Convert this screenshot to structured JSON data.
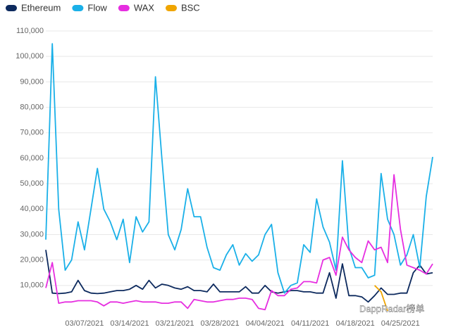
{
  "chart_data": {
    "type": "line",
    "watermark": "DappRadar榜单",
    "categories": [
      null,
      null,
      null,
      null,
      null,
      null,
      "03/07/2021",
      null,
      null,
      null,
      null,
      null,
      null,
      "03/14/2021",
      null,
      null,
      null,
      null,
      null,
      null,
      "03/21/2021",
      null,
      null,
      null,
      null,
      null,
      null,
      "03/28/2021",
      null,
      null,
      null,
      null,
      null,
      null,
      "04/04/2021",
      null,
      null,
      null,
      null,
      null,
      null,
      "04/11/2021",
      null,
      null,
      null,
      null,
      null,
      null,
      "04/18/2021",
      null,
      null,
      null,
      null,
      null,
      null,
      "04/25/2021",
      null,
      null,
      null,
      null,
      null
    ],
    "series": [
      {
        "name": "Ethereum",
        "color": "#0d2a5e",
        "values": [
          24000,
          7000,
          6800,
          7000,
          7500,
          12000,
          8000,
          7000,
          6800,
          7000,
          7500,
          8000,
          8000,
          8500,
          10000,
          8500,
          12000,
          9000,
          10500,
          10000,
          9000,
          8500,
          9500,
          8000,
          8000,
          7500,
          10500,
          7500,
          7500,
          7500,
          7500,
          9500,
          7000,
          7000,
          10000,
          7500,
          7000,
          7500,
          8000,
          8000,
          7500,
          7500,
          7000,
          7000,
          15000,
          5000,
          18500,
          6000,
          6000,
          5500,
          3500,
          6000,
          9000,
          6500,
          6500,
          7000,
          7000,
          15000,
          18000,
          14500,
          15000
        ]
      },
      {
        "name": "Flow",
        "color": "#1ab0e8",
        "values": [
          28000,
          105000,
          40000,
          16000,
          20000,
          35000,
          24000,
          40000,
          56000,
          40000,
          35000,
          28000,
          36000,
          19000,
          37000,
          31000,
          35000,
          92000,
          60000,
          30000,
          24000,
          32000,
          48000,
          37000,
          37000,
          25000,
          17000,
          16000,
          22000,
          26000,
          18000,
          22500,
          19500,
          22000,
          30000,
          34000,
          15000,
          7000,
          10000,
          11000,
          26000,
          23000,
          44000,
          33000,
          27000,
          16000,
          59000,
          25000,
          17000,
          17000,
          13000,
          14000,
          54000,
          36000,
          30000,
          18000,
          22000,
          30000,
          17000,
          45000,
          60500
        ]
      },
      {
        "name": "WAX",
        "color": "#e62ee0",
        "values": [
          9000,
          19000,
          3000,
          3500,
          3500,
          4000,
          4000,
          4000,
          3500,
          2000,
          3500,
          3500,
          3000,
          3500,
          4000,
          3500,
          3500,
          3500,
          3000,
          3000,
          3500,
          3500,
          1000,
          4500,
          4000,
          3500,
          3500,
          4000,
          4500,
          4500,
          5000,
          5000,
          4500,
          1000,
          500,
          8000,
          6000,
          6000,
          8500,
          9000,
          11500,
          11500,
          11000,
          20000,
          21000,
          14000,
          29000,
          24000,
          21000,
          19000,
          27500,
          24000,
          25000,
          19000,
          53500,
          32000,
          18000,
          17000,
          16000,
          14500,
          18500
        ]
      },
      {
        "name": "BSC",
        "color": "#f0a500",
        "values": [
          null,
          null,
          null,
          null,
          null,
          null,
          null,
          null,
          null,
          null,
          null,
          null,
          null,
          null,
          null,
          null,
          null,
          null,
          null,
          null,
          null,
          null,
          null,
          null,
          null,
          null,
          null,
          null,
          null,
          null,
          null,
          null,
          null,
          null,
          null,
          null,
          null,
          null,
          null,
          null,
          null,
          null,
          null,
          null,
          null,
          null,
          null,
          null,
          null,
          null,
          null,
          10000,
          7500,
          0,
          null,
          null,
          null,
          null,
          null,
          null,
          null
        ]
      }
    ],
    "ylim": [
      0,
      110000
    ],
    "yticks": [
      {
        "value": 10000,
        "label": "10,000"
      },
      {
        "value": 20000,
        "label": "20,000"
      },
      {
        "value": 30000,
        "label": "30,000"
      },
      {
        "value": 40000,
        "label": "40,000"
      },
      {
        "value": 50000,
        "label": "50,000"
      },
      {
        "value": 60000,
        "label": "60,000"
      },
      {
        "value": 70000,
        "label": "70,000"
      },
      {
        "value": 80000,
        "label": "80,000"
      },
      {
        "value": 90000,
        "label": "90,000"
      },
      {
        "value": 100000,
        "label": "100,000"
      },
      {
        "value": 110000,
        "label": "110,000"
      }
    ],
    "grid": true
  }
}
